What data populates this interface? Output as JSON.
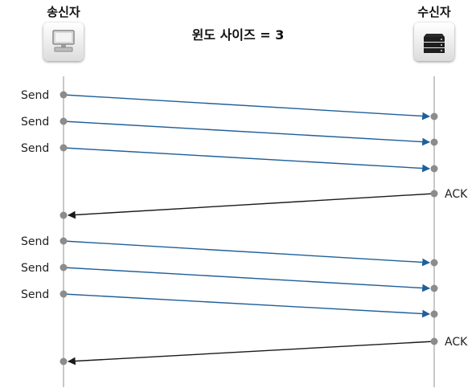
{
  "title": "윈도 사이즈 = 3",
  "sender": {
    "label": "송신자",
    "icon": "computer-icon"
  },
  "receiver": {
    "label": "수신자",
    "icon": "server-icon"
  },
  "colors": {
    "data_arrow": "#1f5f9a",
    "ack_arrow": "#1a1a1a",
    "timeline": "#b5b5b5",
    "dot": "#8c8c8c"
  },
  "messages": [
    {
      "type": "send",
      "label": "Send"
    },
    {
      "type": "send",
      "label": "Send"
    },
    {
      "type": "send",
      "label": "Send"
    },
    {
      "type": "ack",
      "label": "ACK"
    },
    {
      "type": "send",
      "label": "Send"
    },
    {
      "type": "send",
      "label": "Send"
    },
    {
      "type": "send",
      "label": "Send"
    },
    {
      "type": "ack",
      "label": "ACK"
    }
  ]
}
